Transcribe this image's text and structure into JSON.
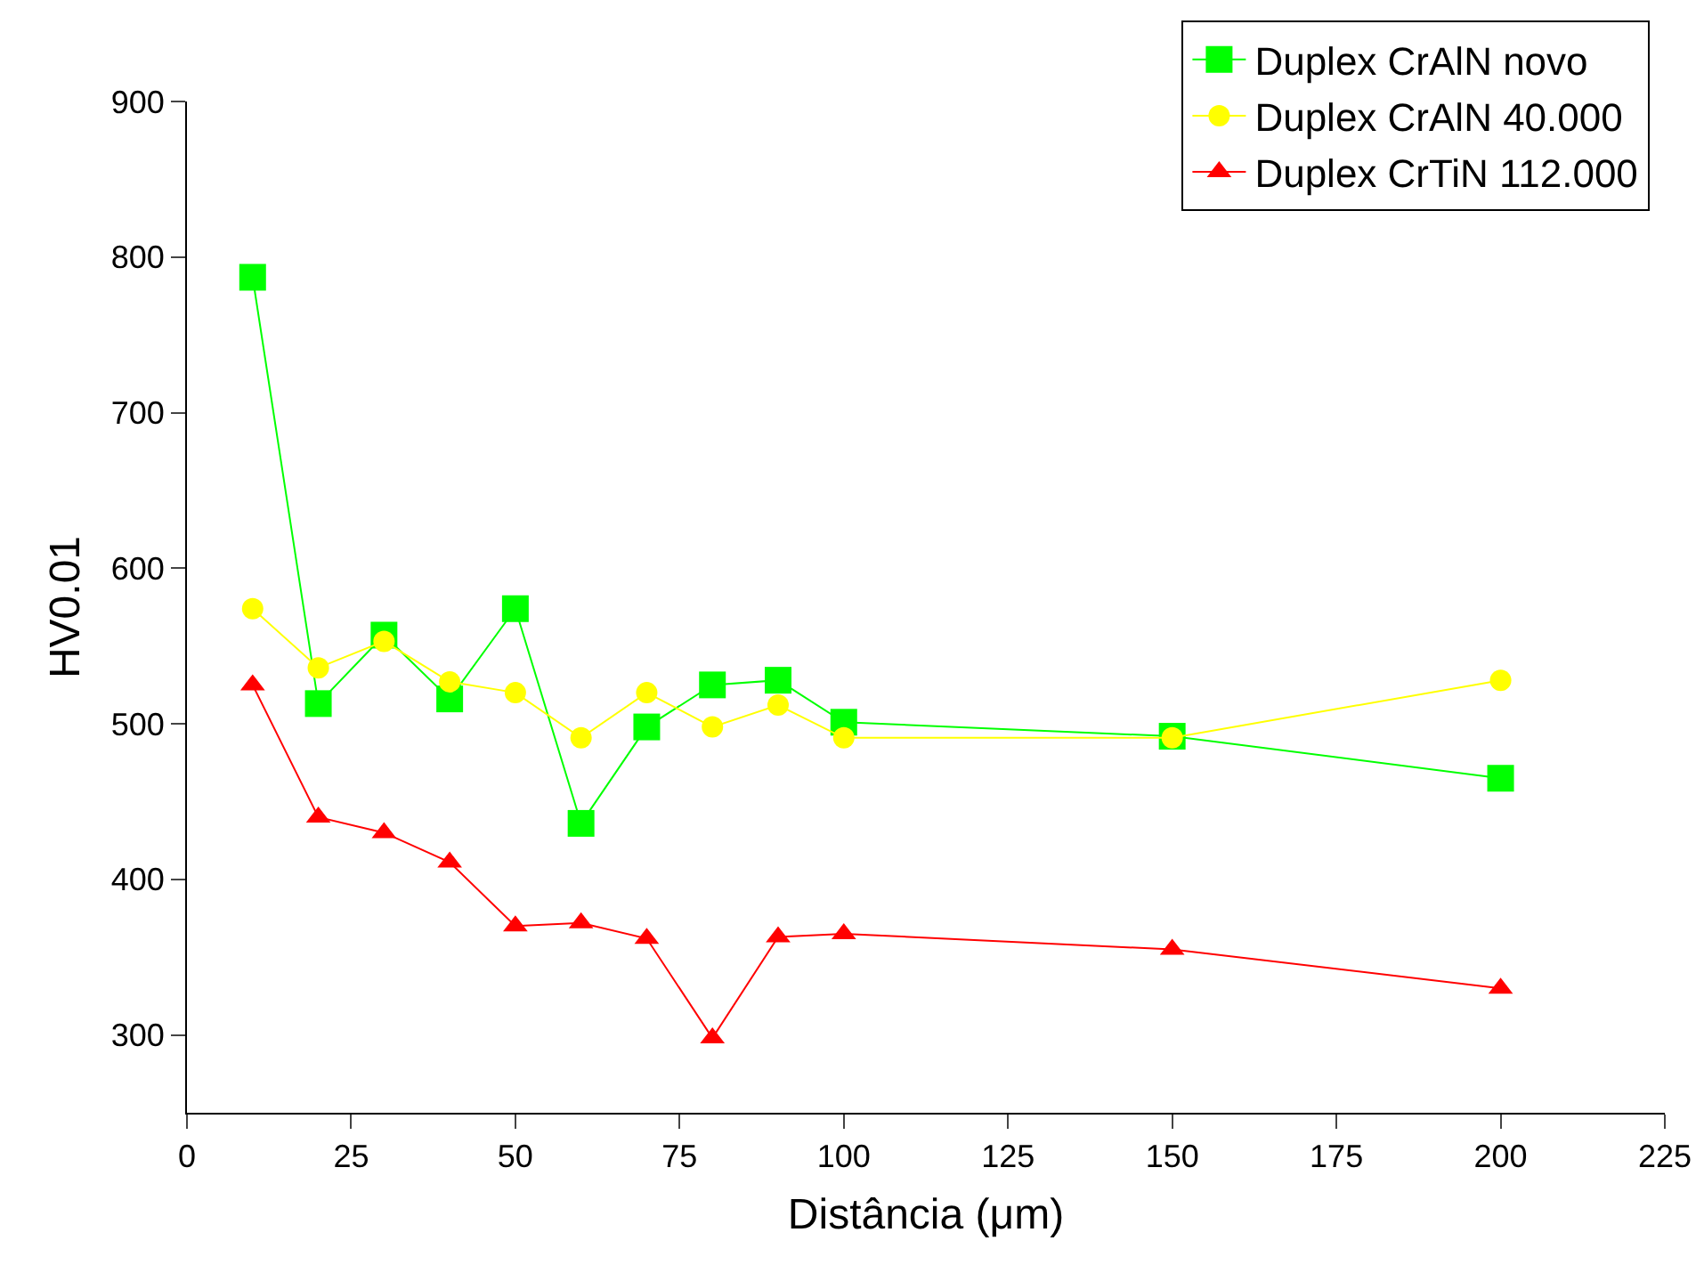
{
  "chart_data": {
    "type": "line",
    "xlabel": "Distância (μm)",
    "ylabel": "HV0.01",
    "x": [
      10,
      20,
      30,
      40,
      50,
      60,
      70,
      80,
      90,
      100,
      150,
      200
    ],
    "xlim": [
      0,
      225
    ],
    "xticks": [
      0,
      25,
      50,
      75,
      100,
      125,
      150,
      175,
      200,
      225
    ],
    "ylim": [
      250,
      900
    ],
    "yticks": [
      300,
      400,
      500,
      600,
      700,
      800,
      900
    ],
    "grid": false,
    "legend": "top right",
    "series": [
      {
        "name": "Duplex CrAlN novo",
        "color": "#00ff00",
        "marker": "square",
        "values": [
          787,
          513,
          557,
          516,
          574,
          436,
          498,
          525,
          528,
          501,
          492,
          465
        ]
      },
      {
        "name": "Duplex CrAlN 40.000",
        "color": "#ffff00",
        "marker": "circle",
        "values": [
          574,
          536,
          553,
          527,
          520,
          491,
          520,
          498,
          512,
          491,
          491,
          528
        ]
      },
      {
        "name": "Duplex CrTiN 112.000",
        "color": "#ff0000",
        "marker": "triangle",
        "values": [
          525,
          440,
          430,
          411,
          370,
          372,
          362,
          298,
          363,
          365,
          355,
          330
        ]
      }
    ]
  }
}
